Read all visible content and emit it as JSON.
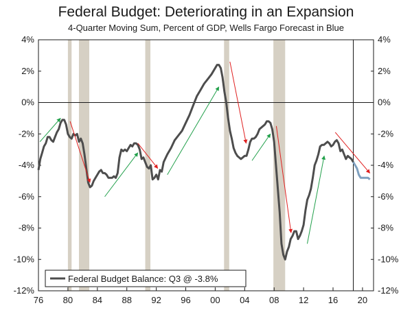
{
  "chart_data": {
    "type": "line",
    "title": "Federal Budget: Deteriorating in an Expansion",
    "subtitle": "4-Quarter Moving Sum, Percent of GDP, Wells Fargo Forecast in Blue",
    "ylim": [
      -12,
      4
    ],
    "xlim": [
      1976,
      2021.5
    ],
    "y_ticks": [
      -12,
      -10,
      -8,
      -6,
      -4,
      -2,
      0,
      2,
      4
    ],
    "y_tick_labels": [
      "-12%",
      "-10%",
      "-8%",
      "-6%",
      "-4%",
      "-2%",
      "0%",
      "2%",
      "4%"
    ],
    "x_ticks": [
      1976,
      1980,
      1984,
      1988,
      1992,
      1996,
      2000,
      2004,
      2008,
      2012,
      2016,
      2020
    ],
    "x_tick_labels": [
      "76",
      "80",
      "84",
      "88",
      "92",
      "96",
      "00",
      "04",
      "08",
      "12",
      "16",
      "20"
    ],
    "recessions": [
      [
        1980.0,
        1980.5
      ],
      [
        1981.5,
        1982.9
      ],
      [
        1990.5,
        1991.2
      ],
      [
        2001.2,
        2001.9
      ],
      [
        2007.9,
        2009.5
      ]
    ],
    "forecast_start": 2018.75,
    "legend": "Federal Budget Balance: Q3 @ -3.8%",
    "series": [
      {
        "name": "Federal Budget Balance",
        "color": "#4d4d4d",
        "x": [
          1976.0,
          1976.25,
          1976.5,
          1976.75,
          1977.0,
          1977.25,
          1977.5,
          1977.75,
          1978.0,
          1978.25,
          1978.5,
          1978.75,
          1979.0,
          1979.25,
          1979.5,
          1979.75,
          1980.0,
          1980.25,
          1980.5,
          1980.75,
          1981.0,
          1981.25,
          1981.5,
          1981.75,
          1982.0,
          1982.25,
          1982.5,
          1982.75,
          1983.0,
          1983.25,
          1983.5,
          1983.75,
          1984.0,
          1984.25,
          1984.5,
          1984.75,
          1985.0,
          1985.25,
          1985.5,
          1985.75,
          1986.0,
          1986.25,
          1986.5,
          1986.75,
          1987.0,
          1987.25,
          1987.5,
          1987.75,
          1988.0,
          1988.25,
          1988.5,
          1988.75,
          1989.0,
          1989.25,
          1989.5,
          1989.75,
          1990.0,
          1990.25,
          1990.5,
          1990.75,
          1991.0,
          1991.25,
          1991.5,
          1991.75,
          1992.0,
          1992.25,
          1992.5,
          1992.75,
          1993.0,
          1993.5,
          1994.0,
          1994.5,
          1995.0,
          1995.5,
          1996.0,
          1996.5,
          1997.0,
          1997.5,
          1998.0,
          1998.5,
          1999.0,
          1999.5,
          2000.0,
          2000.25,
          2000.5,
          2000.75,
          2001.0,
          2001.25,
          2001.5,
          2001.75,
          2002.0,
          2002.25,
          2002.5,
          2002.75,
          2003.0,
          2003.25,
          2003.5,
          2003.75,
          2004.0,
          2004.25,
          2004.5,
          2004.75,
          2005.0,
          2005.25,
          2005.5,
          2005.75,
          2006.0,
          2006.25,
          2006.5,
          2006.75,
          2007.0,
          2007.25,
          2007.5,
          2007.75,
          2008.0,
          2008.25,
          2008.5,
          2008.75,
          2009.0,
          2009.25,
          2009.5,
          2009.75,
          2010.0,
          2010.25,
          2010.5,
          2010.75,
          2011.0,
          2011.25,
          2011.5,
          2011.75,
          2012.0,
          2012.25,
          2012.5,
          2012.75,
          2013.0,
          2013.25,
          2013.5,
          2013.75,
          2014.0,
          2014.25,
          2014.5,
          2014.75,
          2015.0,
          2015.25,
          2015.5,
          2015.75,
          2016.0,
          2016.25,
          2016.5,
          2016.75,
          2017.0,
          2017.25,
          2017.5,
          2017.75,
          2018.0,
          2018.25,
          2018.5,
          2018.75
        ],
        "y": [
          -4.3,
          -3.6,
          -3.2,
          -2.8,
          -2.6,
          -2.2,
          -2.2,
          -2.4,
          -2.5,
          -2.2,
          -1.9,
          -1.7,
          -1.3,
          -1.1,
          -1.1,
          -1.4,
          -2.0,
          -2.2,
          -2.3,
          -2.0,
          -2.1,
          -2.0,
          -2.5,
          -2.3,
          -2.6,
          -3.3,
          -4.2,
          -5.1,
          -5.4,
          -5.3,
          -5.0,
          -4.8,
          -4.6,
          -4.4,
          -4.3,
          -4.5,
          -4.5,
          -4.6,
          -4.8,
          -4.8,
          -4.8,
          -4.7,
          -4.8,
          -4.5,
          -3.5,
          -3.0,
          -3.1,
          -3.0,
          -3.1,
          -2.9,
          -2.7,
          -2.8,
          -2.6,
          -2.6,
          -2.7,
          -3.0,
          -3.6,
          -3.5,
          -3.8,
          -4.1,
          -4.2,
          -4.0,
          -4.9,
          -4.8,
          -4.6,
          -4.9,
          -4.3,
          -4.4,
          -3.8,
          -3.3,
          -2.9,
          -2.4,
          -2.1,
          -1.8,
          -1.3,
          -0.8,
          -0.2,
          0.4,
          0.8,
          1.2,
          1.5,
          1.8,
          2.2,
          2.4,
          2.4,
          2.2,
          1.6,
          0.7,
          0.0,
          -1.0,
          -1.8,
          -2.3,
          -2.9,
          -3.2,
          -3.4,
          -3.5,
          -3.6,
          -3.5,
          -3.4,
          -3.4,
          -3.0,
          -2.5,
          -2.3,
          -2.3,
          -2.2,
          -2.0,
          -1.7,
          -1.6,
          -1.5,
          -1.4,
          -1.2,
          -1.2,
          -1.3,
          -1.7,
          -2.5,
          -4.0,
          -5.5,
          -7.0,
          -9.0,
          -9.7,
          -10.0,
          -9.5,
          -9.2,
          -8.7,
          -8.5,
          -8.2,
          -8.2,
          -8.7,
          -8.5,
          -8.2,
          -7.8,
          -6.9,
          -6.2,
          -5.9,
          -5.5,
          -4.8,
          -4.0,
          -3.7,
          -3.3,
          -2.8,
          -2.7,
          -2.7,
          -2.6,
          -2.5,
          -2.6,
          -2.8,
          -2.7,
          -2.5,
          -2.4,
          -2.6,
          -3.1,
          -3.0,
          -3.3,
          -3.6,
          -3.4,
          -3.5,
          -3.6,
          -3.8
        ]
      },
      {
        "name": "Wells Fargo Forecast",
        "color": "#7fa0bf",
        "x": [
          2018.75,
          2019.0,
          2019.25,
          2019.5,
          2019.75,
          2020.0,
          2020.25,
          2020.5,
          2020.75,
          2021.0
        ],
        "y": [
          -3.8,
          -4.0,
          -4.2,
          -4.6,
          -4.8,
          -4.8,
          -4.8,
          -4.8,
          -4.8,
          -4.9
        ]
      }
    ],
    "arrows_green": [
      [
        [
          1976.2,
          -2.5
        ],
        [
          1979.0,
          -1.0
        ]
      ],
      [
        [
          1985.0,
          -6.0
        ],
        [
          1989.5,
          -3.2
        ]
      ],
      [
        [
          1993.5,
          -4.6
        ],
        [
          2000.5,
          1.0
        ]
      ],
      [
        [
          2005.0,
          -3.7
        ],
        [
          2007.5,
          -2.0
        ]
      ],
      [
        [
          2012.5,
          -9.0
        ],
        [
          2014.8,
          -3.4
        ]
      ]
    ],
    "arrows_red": [
      [
        [
          1980.3,
          -1.2
        ],
        [
          1983.0,
          -5.1
        ]
      ],
      [
        [
          1989.5,
          -2.6
        ],
        [
          1992.2,
          -4.2
        ]
      ],
      [
        [
          2002.0,
          2.6
        ],
        [
          2004.2,
          -2.6
        ]
      ],
      [
        [
          2008.3,
          -1.5
        ],
        [
          2010.3,
          -8.3
        ]
      ],
      [
        [
          2016.3,
          -1.9
        ],
        [
          2021.0,
          -4.5
        ]
      ]
    ]
  }
}
